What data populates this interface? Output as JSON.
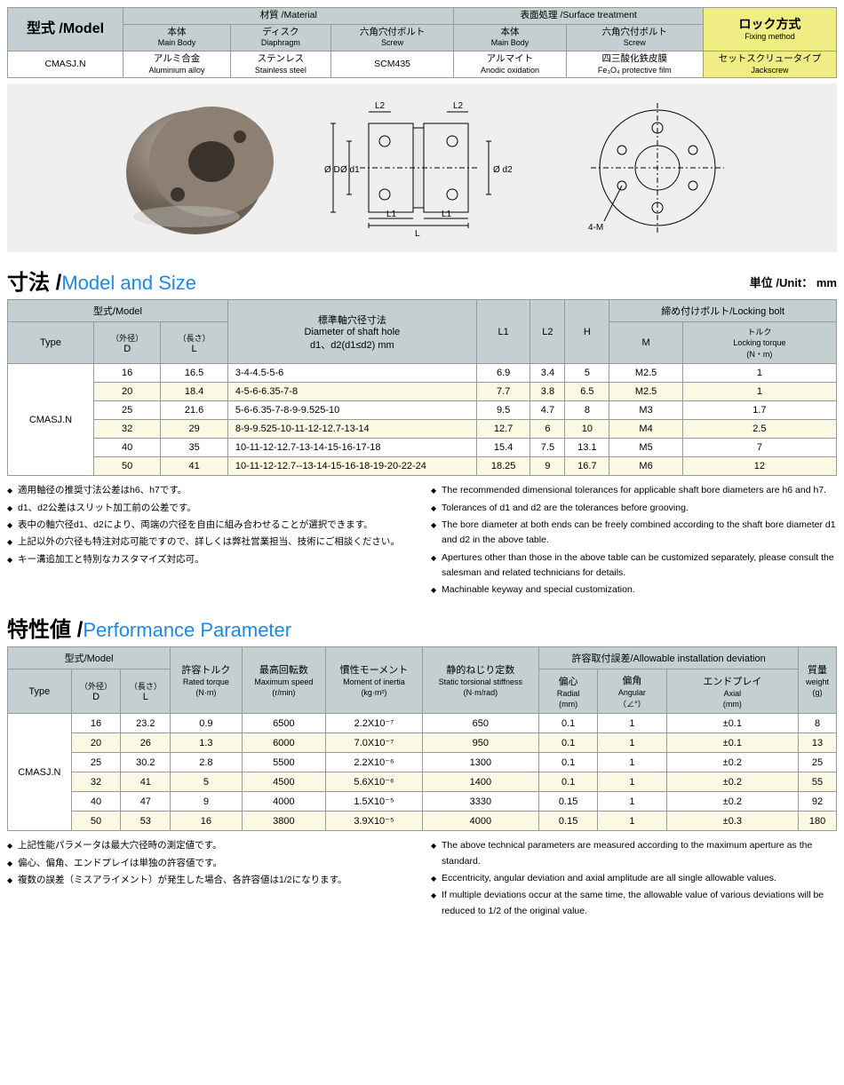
{
  "top": {
    "model_hdr": "型式 /Model",
    "material_hdr": "材質 /Material",
    "surface_hdr": "表面処理 /Surface treatment",
    "fixing_hdr": "ロック方式",
    "fixing_sub": "Fixing method",
    "body_jp": "本体",
    "body_en": "Main Body",
    "disc_jp": "ディスク",
    "disc_en": "Diaphragm",
    "screw_jp": "六角穴付ボルト",
    "screw_en": "Screw",
    "model_val": "CMASJ.N",
    "body_mat_jp": "アルミ合金",
    "body_mat_en": "Aluminium alloy",
    "disc_mat_jp": "ステンレス",
    "disc_mat_en": "Stainless steel",
    "screw_mat": "SCM435",
    "body_surf_jp": "アルマイト",
    "body_surf_en": "Anodic oxidation",
    "screw_surf_jp": "四三酸化鉄皮膜",
    "screw_surf_en": "Fe₃O₄ protective film",
    "fixing_jp": "セットスクリュータイプ",
    "fixing_en": "Jackscrew"
  },
  "diagram": {
    "d": "Ø D",
    "d1": "Ø d1",
    "d2": "Ø d2",
    "l": "L",
    "l1": "L1",
    "l2": "L2",
    "m4": "4-M"
  },
  "size": {
    "title_jp": "寸法 /",
    "title_en": "Model and Size",
    "unit": "単位 /Unit： mm",
    "h_model": "型式/Model",
    "h_type": "Type",
    "h_d_jp": "（外径）",
    "h_d": "D",
    "h_l_jp": "（長さ）",
    "h_l": "L",
    "h_diam_jp": "標準軸穴径寸法",
    "h_diam_en": "Diameter of shaft hole",
    "h_diam_sub": "d1、d2(d1≤d2) mm",
    "h_l1": "L1",
    "h_l2": "L2",
    "h_h": "H",
    "h_bolt": "締め付けボルト/Locking bolt",
    "h_m": "M",
    "h_tq_jp": "トルク",
    "h_tq_en": "Locking torque",
    "h_tq_u": "(N・m)",
    "type_val": "CMASJ.N",
    "rows": [
      {
        "d": "16",
        "l": "16.5",
        "diam": "3-4-4.5-5-6",
        "l1": "6.9",
        "l2": "3.4",
        "h": "5",
        "m": "M2.5",
        "tq": "1"
      },
      {
        "d": "20",
        "l": "18.4",
        "diam": "4-5-6-6.35-7-8",
        "l1": "7.7",
        "l2": "3.8",
        "h": "6.5",
        "m": "M2.5",
        "tq": "1"
      },
      {
        "d": "25",
        "l": "21.6",
        "diam": "5-6-6.35-7-8-9-9.525-10",
        "l1": "9.5",
        "l2": "4.7",
        "h": "8",
        "m": "M3",
        "tq": "1.7"
      },
      {
        "d": "32",
        "l": "29",
        "diam": "8-9-9.525-10-11-12-12.7-13-14",
        "l1": "12.7",
        "l2": "6",
        "h": "10",
        "m": "M4",
        "tq": "2.5"
      },
      {
        "d": "40",
        "l": "35",
        "diam": "10-11-12-12.7-13-14-15-16-17-18",
        "l1": "15.4",
        "l2": "7.5",
        "h": "13.1",
        "m": "M5",
        "tq": "7"
      },
      {
        "d": "50",
        "l": "41",
        "diam": "10-11-12-12.7--13-14-15-16-18-19-20-22-24",
        "l1": "18.25",
        "l2": "9",
        "h": "16.7",
        "m": "M6",
        "tq": "12"
      }
    ]
  },
  "notes1_jp": [
    "適用軸径の推奨寸法公差はh6、h7です。",
    "d1、d2公差はスリット加工前の公差です。",
    "表中の軸穴径d1、d2により、両端の穴径を自由に組み合わせることが選択できます。",
    "上記以外の穴径も特注対応可能ですので、詳しくは弊社営業担当、技術にご相談ください。",
    "キー溝追加工と特別なカスタマイズ対応可。"
  ],
  "notes1_en": [
    "The recommended dimensional tolerances for applicable shaft bore diameters are h6 and h7.",
    "Tolerances of d1 and d2 are the tolerances before grooving.",
    "The bore diameter at both ends can be freely combined according to the shaft bore diameter d1 and d2 in the above table.",
    "Apertures other than those in the above table can be customized separately, please consult the salesman and related technicians for details.",
    "Machinable keyway and special customization."
  ],
  "perf": {
    "title_jp": "特性値 /",
    "title_en": "Performance Parameter",
    "h_model": "型式/Model",
    "h_type": "Type",
    "h_d_jp": "（外径）",
    "h_d": "D",
    "h_l_jp": "（長さ）",
    "h_l": "L",
    "h_rt_jp": "許容トルク",
    "h_rt_en": "Rated torque",
    "h_rt_u": "(N·m)",
    "h_ms_jp": "最高回転数",
    "h_ms_en": "Maximum speed",
    "h_ms_u": "(r/min)",
    "h_mi_jp": "慣性モーメント",
    "h_mi_en": "Moment of inertia",
    "h_mi_u": "(kg·m²)",
    "h_st_jp": "静的ねじり定数",
    "h_st_en": "Static torsional stiffness",
    "h_st_u": "(N·m/rad)",
    "h_dev": "許容取付誤差/Allowable installation deviation",
    "h_rad_jp": "偏心",
    "h_rad_en": "Radial",
    "h_rad_u": "(mm)",
    "h_ang_jp": "偏角",
    "h_ang_en": "Angular",
    "h_ang_u": "（∠°）",
    "h_ax_jp": "エンドプレイ",
    "h_ax_en": "Axial",
    "h_ax_u": "(mm)",
    "h_wt_jp": "質量",
    "h_wt_en": "weight",
    "h_wt_u": "(g)",
    "type_val": "CMASJ.N",
    "rows": [
      {
        "d": "16",
        "l": "23.2",
        "rt": "0.9",
        "ms": "6500",
        "mi": "2.2X10⁻⁷",
        "st": "650",
        "rad": "0.1",
        "ang": "1",
        "ax": "±0.1",
        "wt": "8"
      },
      {
        "d": "20",
        "l": "26",
        "rt": "1.3",
        "ms": "6000",
        "mi": "7.0X10⁻⁷",
        "st": "950",
        "rad": "0.1",
        "ang": "1",
        "ax": "±0.1",
        "wt": "13"
      },
      {
        "d": "25",
        "l": "30.2",
        "rt": "2.8",
        "ms": "5500",
        "mi": "2.2X10⁻⁶",
        "st": "1300",
        "rad": "0.1",
        "ang": "1",
        "ax": "±0.2",
        "wt": "25"
      },
      {
        "d": "32",
        "l": "41",
        "rt": "5",
        "ms": "4500",
        "mi": "5.6X10⁻⁶",
        "st": "1400",
        "rad": "0.1",
        "ang": "1",
        "ax": "±0.2",
        "wt": "55"
      },
      {
        "d": "40",
        "l": "47",
        "rt": "9",
        "ms": "4000",
        "mi": "1.5X10⁻⁵",
        "st": "3330",
        "rad": "0.15",
        "ang": "1",
        "ax": "±0.2",
        "wt": "92"
      },
      {
        "d": "50",
        "l": "53",
        "rt": "16",
        "ms": "3800",
        "mi": "3.9X10⁻⁵",
        "st": "4000",
        "rad": "0.15",
        "ang": "1",
        "ax": "±0.3",
        "wt": "180"
      }
    ]
  },
  "notes2_jp": [
    "上記性能パラメータは最大穴径時の測定値です。",
    "偏心、偏角、エンドプレイは単独の許容値です。",
    "複数の誤差（ミスアライメント）が発生した場合、各許容値は1/2になります。"
  ],
  "notes2_en": [
    "The above technical parameters are measured according to the maximum aperture as the standard.",
    "Eccentricity,  angular deviation and axial amplitude are all single allowable values.",
    "If multiple deviations occur at the same time, the allowable value of various deviations will be reduced to 1/2 of the original value."
  ],
  "colors": {
    "gray": "#c3cfd0",
    "yellow": "#f0ed84",
    "alt": "#fbf9e4",
    "blue": "#1e88e5"
  }
}
